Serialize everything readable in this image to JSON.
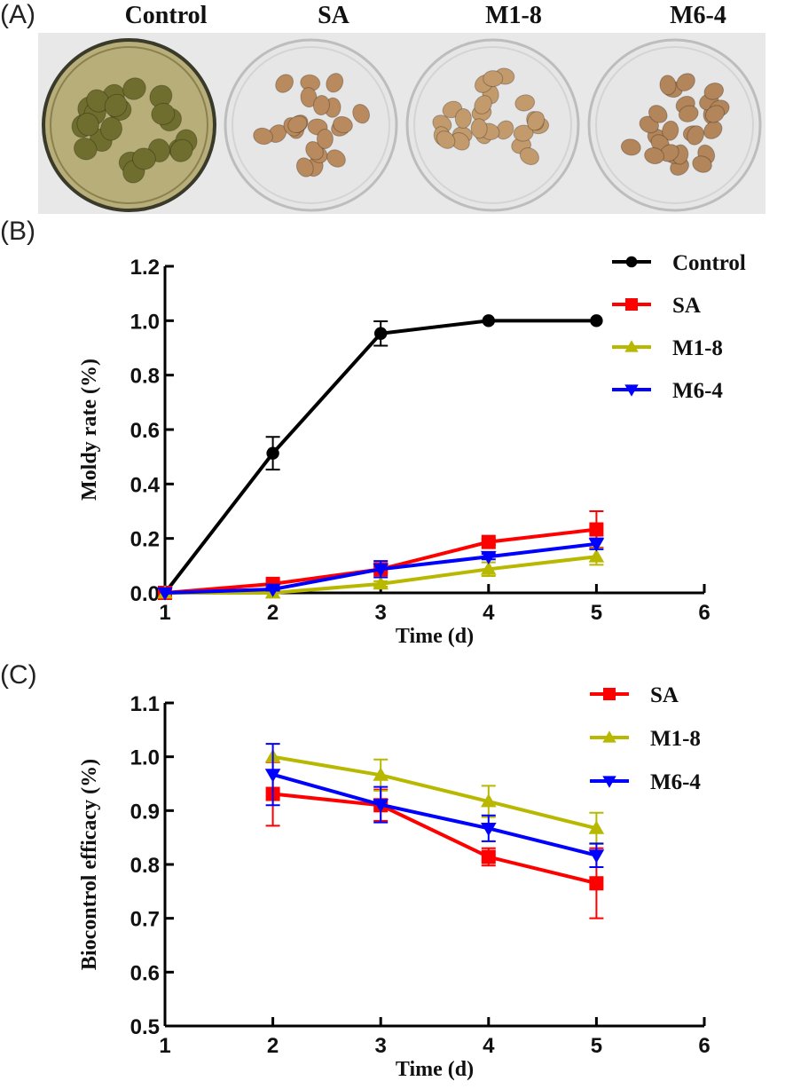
{
  "panels": {
    "a": {
      "label": "(A)"
    },
    "b": {
      "label": "(B)"
    },
    "c": {
      "label": "(C)"
    }
  },
  "photos": [
    {
      "title": "Control",
      "content": "moldy peanuts covered with green fungal growth",
      "dish_bg": "#b8ae7a",
      "item_color": "#6f6e2e",
      "item_count": 22
    },
    {
      "title": "SA",
      "content": "clean peanuts in glass petri dish",
      "dish_bg": "#e6e6e6",
      "item_color": "#b88a5e",
      "item_count": 22
    },
    {
      "title": "M1-8",
      "content": "clean peanuts in glass petri dish",
      "dish_bg": "#e6e6e6",
      "item_color": "#c29a6c",
      "item_count": 24
    },
    {
      "title": "M6-4",
      "content": "clean peanuts in glass petri dish",
      "dish_bg": "#e6e6e6",
      "item_color": "#b2855a",
      "item_count": 26
    }
  ],
  "chart_data": [
    {
      "id": "B",
      "type": "line",
      "title": "",
      "xlabel": "Time (d)",
      "ylabel": "Moldy rate (%)",
      "xlim": [
        1,
        6
      ],
      "ylim": [
        0,
        1.2
      ],
      "xticks": [
        "1",
        "2",
        "3",
        "4",
        "5",
        "6"
      ],
      "yticks": [
        "0.0",
        "0.2",
        "0.4",
        "0.6",
        "0.8",
        "1.0",
        "1.2"
      ],
      "grid": false,
      "legend_position": "top-right",
      "x": [
        1,
        2,
        3,
        4,
        5
      ],
      "series": [
        {
          "name": "Control",
          "color": "#000000",
          "marker": "circle",
          "values": [
            0.0,
            0.513,
            0.953,
            1.0,
            1.0
          ],
          "errors": [
            0,
            0.06,
            0.045,
            0,
            0
          ]
        },
        {
          "name": "SA",
          "color": "#ff0000",
          "marker": "square",
          "values": [
            0.0,
            0.033,
            0.087,
            0.187,
            0.233
          ],
          "errors": [
            0,
            0.012,
            0.01,
            0.01,
            0.067
          ]
        },
        {
          "name": "M1-8",
          "color": "#b8b800",
          "marker": "triangle-up",
          "values": [
            0.0,
            0.0,
            0.033,
            0.087,
            0.133
          ],
          "errors": [
            0,
            0,
            0.01,
            0.025,
            0.03
          ]
        },
        {
          "name": "M6-4",
          "color": "#0000ff",
          "marker": "triangle-down",
          "values": [
            0.0,
            0.013,
            0.087,
            0.133,
            0.18
          ],
          "errors": [
            0,
            0.005,
            0.03,
            0.01,
            0.02
          ]
        }
      ]
    },
    {
      "id": "C",
      "type": "line",
      "title": "",
      "xlabel": "Time (d)",
      "ylabel": "Biocontrol efficacy (%)",
      "xlim": [
        1,
        6
      ],
      "ylim": [
        0.5,
        1.1
      ],
      "xticks": [
        "1",
        "2",
        "3",
        "4",
        "5",
        "6"
      ],
      "yticks": [
        "0.5",
        "0.6",
        "0.7",
        "0.8",
        "0.9",
        "1.0",
        "1.1"
      ],
      "grid": false,
      "legend_position": "top-right",
      "x": [
        2,
        3,
        4,
        5
      ],
      "series": [
        {
          "name": "SA",
          "color": "#ff0000",
          "marker": "square",
          "values": [
            0.931,
            0.91,
            0.814,
            0.765
          ],
          "errors": [
            0.059,
            0.029,
            0.016,
            0.065
          ]
        },
        {
          "name": "M1-8",
          "color": "#b8b800",
          "marker": "triangle-up",
          "values": [
            1.0,
            0.966,
            0.917,
            0.867
          ],
          "errors": [
            0.0,
            0.029,
            0.029,
            0.029
          ]
        },
        {
          "name": "M6-4",
          "color": "#0000ff",
          "marker": "triangle-down",
          "values": [
            0.967,
            0.911,
            0.867,
            0.817
          ],
          "errors": [
            0.057,
            0.033,
            0.024,
            0.022
          ]
        }
      ]
    }
  ]
}
